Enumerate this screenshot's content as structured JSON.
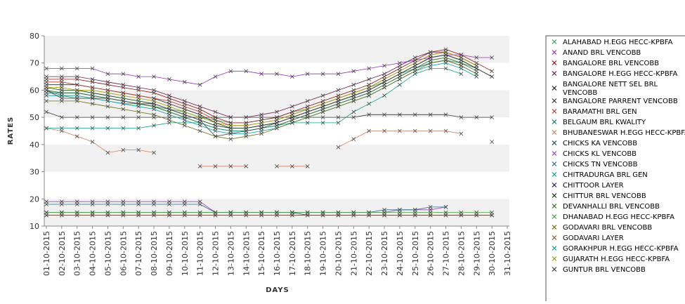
{
  "chart_data": {
    "type": "line",
    "xlabel": "DAYS",
    "ylabel": "RATES",
    "ylim": [
      10,
      80
    ],
    "yticks": [
      10,
      20,
      30,
      40,
      50,
      60,
      70,
      80
    ],
    "x": [
      "01-10-2015",
      "02-10-2015",
      "03-10-2015",
      "04-10-2015",
      "05-10-2015",
      "06-10-2015",
      "07-10-2015",
      "08-10-2015",
      "09-10-2015",
      "10-10-2015",
      "11-10-2015",
      "12-10-2015",
      "13-10-2015",
      "14-10-2015",
      "15-10-2015",
      "16-10-2015",
      "17-10-2015",
      "18-10-2015",
      "19-10-2015",
      "20-10-2015",
      "21-10-2015",
      "22-10-2015",
      "23-10-2015",
      "24-10-2015",
      "25-10-2015",
      "26-10-2015",
      "27-10-2015",
      "28-10-2015",
      "29-10-2015",
      "30-10-2015",
      "31-10-2015"
    ],
    "grid": "alternating horizontal bands",
    "legend_position": "right",
    "series": [
      {
        "name": "ALAHABAD H.EGG HECC-KPBFA",
        "color": "#3c9a5a",
        "values": [
          60,
          58,
          57,
          57,
          56,
          55,
          55,
          54,
          53,
          52,
          50,
          49,
          48,
          48,
          49,
          50,
          52,
          53,
          55,
          57,
          59,
          61,
          63,
          66,
          68,
          70,
          71,
          70,
          68,
          null,
          null
        ]
      },
      {
        "name": "ANAND BRL VENCOBB",
        "color": "#9b30c0",
        "values": [
          68,
          68,
          68,
          68,
          66,
          66,
          65,
          65,
          64,
          63,
          62,
          65,
          67,
          67,
          66,
          66,
          65,
          66,
          66,
          66,
          67,
          68,
          69,
          70,
          71,
          72,
          73,
          73,
          72,
          72,
          null
        ]
      },
      {
        "name": "BANGALORE BRL VENCOBB",
        "color": "#8b1010",
        "values": [
          64,
          64,
          64,
          63,
          62,
          61,
          60,
          59,
          57,
          55,
          53,
          50,
          48,
          48,
          49,
          50,
          52,
          54,
          56,
          58,
          60,
          62,
          65,
          68,
          71,
          74,
          75,
          73,
          70,
          67,
          null
        ]
      },
      {
        "name": "BANGALORE H.EGG HECC-KPBFA",
        "color": "#6b1a4a",
        "values": [
          65,
          65,
          65,
          64,
          63,
          62,
          61,
          60,
          58,
          56,
          54,
          52,
          50,
          50,
          51,
          52,
          54,
          56,
          58,
          60,
          62,
          64,
          66,
          69,
          72,
          74,
          74,
          72,
          69,
          null,
          null
        ]
      },
      {
        "name": "BANGALORE NETT SEL BRL VENCOBB",
        "color": "#222222",
        "values": [
          62,
          62,
          62,
          61,
          60,
          59,
          58,
          57,
          55,
          53,
          51,
          48,
          46,
          46,
          47,
          48,
          50,
          52,
          54,
          56,
          58,
          60,
          63,
          66,
          69,
          72,
          73,
          71,
          68,
          65,
          null
        ]
      },
      {
        "name": "BANGALORE PARRENT VENCOBB",
        "color": "#333333",
        "values": [
          52,
          50,
          50,
          50,
          50,
          50,
          50,
          50,
          50,
          50,
          50,
          50,
          50,
          50,
          50,
          50,
          50,
          50,
          50,
          50,
          50,
          51,
          51,
          51,
          51,
          51,
          51,
          50,
          50,
          50,
          null
        ]
      },
      {
        "name": "BARAMATHI BRL GEN",
        "color": "#c0392b",
        "values": [
          63,
          63,
          62,
          61,
          60,
          59,
          58,
          57,
          56,
          54,
          52,
          49,
          47,
          47,
          48,
          49,
          51,
          53,
          55,
          57,
          59,
          61,
          64,
          67,
          70,
          73,
          74,
          72,
          69,
          null,
          null
        ]
      },
      {
        "name": "BELGAUM BRL KWALITY",
        "color": "#1a7a7a",
        "values": [
          59,
          59,
          59,
          58,
          57,
          56,
          55,
          54,
          52,
          50,
          48,
          46,
          45,
          45,
          46,
          47,
          49,
          51,
          53,
          55,
          57,
          59,
          62,
          65,
          68,
          70,
          71,
          69,
          66,
          null,
          null
        ]
      },
      {
        "name": "BHUBANESWAR H.EGG HECC-KPBFA",
        "color": "#d08060",
        "values": [
          46,
          45,
          43,
          41,
          37,
          38,
          38,
          37,
          null,
          null,
          32,
          32,
          32,
          32,
          null,
          32,
          32,
          32,
          null,
          39,
          42,
          45,
          45,
          45,
          45,
          45,
          45,
          44,
          null,
          41,
          null
        ]
      },
      {
        "name": "CHICKS KA VENCOBB",
        "color": "#1a4d4d",
        "values": [
          15,
          15,
          15,
          15,
          15,
          15,
          15,
          15,
          15,
          15,
          15,
          15,
          15,
          15,
          15,
          15,
          15,
          14,
          14,
          14,
          14,
          14,
          14,
          14,
          14,
          14,
          14,
          14,
          14,
          14,
          null
        ]
      },
      {
        "name": "CHICKS KL VENCOBB",
        "color": "#a040c0",
        "values": [
          19,
          19,
          19,
          19,
          19,
          19,
          19,
          19,
          19,
          19,
          19,
          15,
          15,
          15,
          15,
          15,
          15,
          15,
          15,
          15,
          15,
          15,
          15,
          16,
          16,
          16,
          17,
          null,
          null,
          null,
          null
        ]
      },
      {
        "name": "CHICKS TN VENCOBB",
        "color": "#2a6a8a",
        "values": [
          18,
          18,
          18,
          18,
          18,
          18,
          18,
          18,
          18,
          18,
          18,
          15,
          15,
          15,
          15,
          15,
          15,
          15,
          15,
          15,
          15,
          15,
          16,
          16,
          16,
          17,
          17,
          null,
          null,
          null,
          null
        ]
      },
      {
        "name": "CHITRADURGA BRL GEN",
        "color": "#00a0a0",
        "values": [
          58,
          58,
          58,
          57,
          56,
          55,
          54,
          53,
          51,
          49,
          47,
          45,
          44,
          44,
          45,
          46,
          48,
          50,
          52,
          54,
          56,
          58,
          61,
          64,
          67,
          69,
          70,
          68,
          65,
          null,
          null
        ]
      },
      {
        "name": "CHITTOOR LAYER",
        "color": "#1a1a6a",
        "values": [
          14,
          14,
          14,
          14,
          14,
          14,
          14,
          14,
          14,
          14,
          14,
          14,
          14,
          14,
          14,
          14,
          14,
          14,
          14,
          14,
          14,
          14,
          14,
          14,
          14,
          14,
          14,
          14,
          14,
          14,
          null
        ]
      },
      {
        "name": "CHITTUR BRL VENCOBB",
        "color": "#0a3a0a",
        "values": [
          61,
          60,
          60,
          59,
          58,
          57,
          56,
          55,
          53,
          51,
          49,
          47,
          46,
          46,
          47,
          48,
          50,
          52,
          54,
          56,
          58,
          60,
          63,
          66,
          69,
          72,
          73,
          71,
          68,
          null,
          null
        ]
      },
      {
        "name": "DEVANHALLI BRL VENCOBB",
        "color": "#2a6a2a",
        "values": [
          60,
          59,
          59,
          58,
          57,
          56,
          55,
          54,
          52,
          50,
          48,
          46,
          45,
          45,
          46,
          47,
          49,
          51,
          53,
          55,
          57,
          59,
          62,
          65,
          68,
          71,
          72,
          70,
          67,
          null,
          null
        ]
      },
      {
        "name": "DHANABAD H.EGG HECC-KPBFA",
        "color": "#40a040",
        "values": [
          15,
          15,
          15,
          15,
          15,
          15,
          15,
          15,
          15,
          15,
          15,
          15,
          15,
          15,
          15,
          15,
          15,
          15,
          15,
          15,
          15,
          15,
          15,
          15,
          15,
          15,
          15,
          15,
          15,
          15,
          null
        ]
      },
      {
        "name": "GODAVARI BRL VENCOBB",
        "color": "#6a6a10",
        "values": [
          56,
          56,
          56,
          55,
          54,
          53,
          52,
          51,
          49,
          47,
          45,
          43,
          42,
          43,
          44,
          46,
          48,
          50,
          52,
          54,
          56,
          58,
          61,
          64,
          67,
          70,
          71,
          69,
          66,
          null,
          null
        ]
      },
      {
        "name": "GODAVARI LAYER",
        "color": "#8a5a2a",
        "values": [
          14,
          14,
          14,
          14,
          14,
          14,
          14,
          14,
          14,
          14,
          14,
          14,
          14,
          14,
          14,
          14,
          14,
          14,
          14,
          14,
          14,
          14,
          14,
          14,
          14,
          14,
          14,
          14,
          14,
          14,
          null
        ]
      },
      {
        "name": "GORAKHPUR H.EGG HECC-KPBFA",
        "color": "#10a080",
        "values": [
          46,
          46,
          46,
          46,
          46,
          46,
          46,
          47,
          48,
          48,
          48,
          46,
          45,
          45,
          46,
          47,
          48,
          48,
          48,
          48,
          52,
          55,
          58,
          62,
          66,
          68,
          68,
          66,
          null,
          null,
          null
        ]
      },
      {
        "name": "GUJARATH H.EGG HECC-KPBFA",
        "color": "#a0a000",
        "values": [
          61,
          61,
          60,
          60,
          59,
          58,
          57,
          56,
          54,
          52,
          50,
          48,
          47,
          47,
          48,
          49,
          51,
          53,
          55,
          57,
          59,
          61,
          64,
          67,
          70,
          73,
          74,
          72,
          69,
          null,
          null
        ]
      },
      {
        "name": "GUNTUR BRL VENCOBB",
        "color": "#404040",
        "values": [
          60,
          57,
          57,
          57,
          57,
          56,
          55,
          55,
          53,
          51,
          49,
          43,
          44,
          45,
          46,
          48,
          50,
          52,
          54,
          56,
          58,
          60,
          63,
          66,
          69,
          72,
          73,
          71,
          68,
          65,
          null
        ]
      }
    ]
  }
}
